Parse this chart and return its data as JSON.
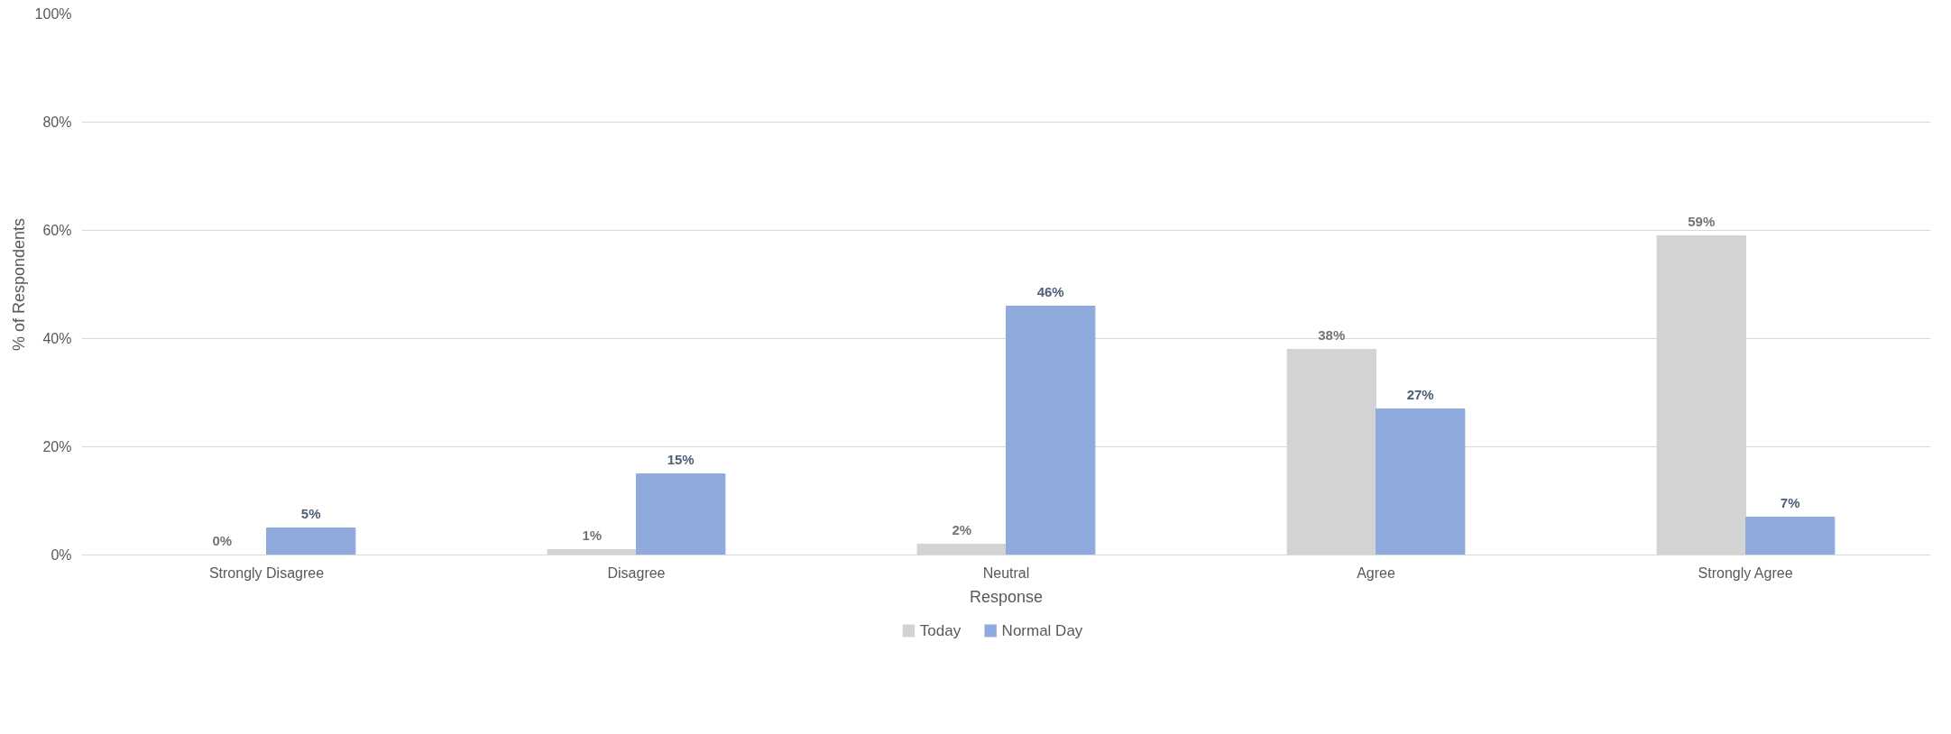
{
  "chart_data": {
    "type": "bar",
    "xlabel": "Response",
    "ylabel": "% of Respondents",
    "categories": [
      "Strongly Disagree",
      "Disagree",
      "Neutral",
      "Agree",
      "Strongly Agree"
    ],
    "series": [
      {
        "name": "Today",
        "color": "#d3d3d3",
        "values": [
          0,
          1,
          2,
          38,
          59
        ],
        "value_labels": [
          "0%",
          "1%",
          "2%",
          "38%",
          "59%"
        ]
      },
      {
        "name": "Normal Day",
        "color": "#8faadc",
        "values": [
          5,
          15,
          46,
          27,
          7
        ],
        "value_labels": [
          "5%",
          "15%",
          "46%",
          "27%",
          "7%"
        ]
      }
    ],
    "ylim": [
      0,
      100
    ],
    "yticks": [
      {
        "value": 0,
        "label": "0%"
      },
      {
        "value": 20,
        "label": "20%"
      },
      {
        "value": 40,
        "label": "40%"
      },
      {
        "value": 60,
        "label": "60%"
      },
      {
        "value": 80,
        "label": "80%"
      },
      {
        "value": 100,
        "label": "100%"
      }
    ],
    "grid": "y",
    "legend": "bottom"
  }
}
